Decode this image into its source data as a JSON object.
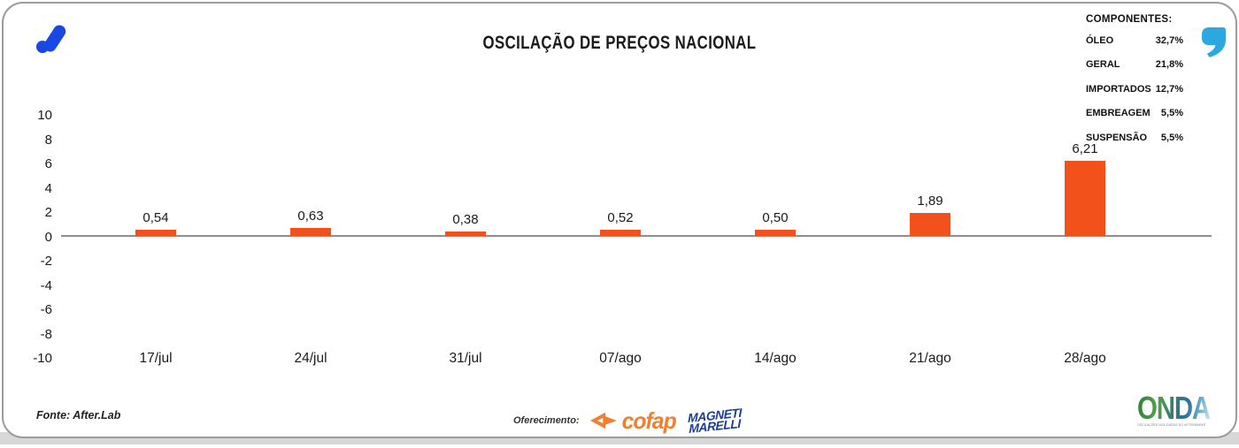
{
  "title": "OSCILAÇÃO DE PREÇOS NACIONAL",
  "legend": {
    "heading": "COMPONENTES:",
    "items": [
      {
        "label": "ÓLEO",
        "value": "32,7%"
      },
      {
        "label": "GERAL",
        "value": "21,8%"
      },
      {
        "label": "IMPORTADOS",
        "value": "12,7%"
      },
      {
        "label": "EMBREAGEM",
        "value": "5,5%"
      },
      {
        "label": "SUSPENSÃO",
        "value": "5,5%"
      }
    ]
  },
  "chart_data": {
    "type": "bar",
    "title": "OSCILAÇÃO DE PREÇOS NACIONAL",
    "categories": [
      "17/jul",
      "24/jul",
      "31/jul",
      "07/ago",
      "14/ago",
      "21/ago",
      "28/ago"
    ],
    "values": [
      0.54,
      0.63,
      0.38,
      0.52,
      0.5,
      1.89,
      6.21
    ],
    "value_labels": [
      "0,54",
      "0,63",
      "0,38",
      "0,52",
      "0,50",
      "1,89",
      "6,21"
    ],
    "ylim": [
      -10,
      10
    ],
    "yticks": [
      10,
      8,
      6,
      4,
      2,
      0,
      -2,
      -4,
      -6,
      -8,
      -10
    ],
    "grid": false,
    "legend_position": "top-right",
    "xlabel": "",
    "ylabel": ""
  },
  "footer": {
    "source": "Fonte: After.Lab",
    "sponsor_label": "Oferecimento:",
    "cofap_text": "cofap",
    "marelli_line1": "MAGNETI",
    "marelli_line2": "MARELLI",
    "onda_text": "ONDA",
    "onda_tagline": "OSCILAÇÕES NOS DADOS DO AFTERMARKET DE PEÇAS E VEÍCULOS"
  },
  "colors": {
    "bar": "#F2511C",
    "accent_blue": "#1847E6",
    "quote_cyan": "#2BA9DF",
    "cofap_orange": "#F08030",
    "marelli_blue": "#1C3E92",
    "axis_gray": "#8F8F8F"
  }
}
